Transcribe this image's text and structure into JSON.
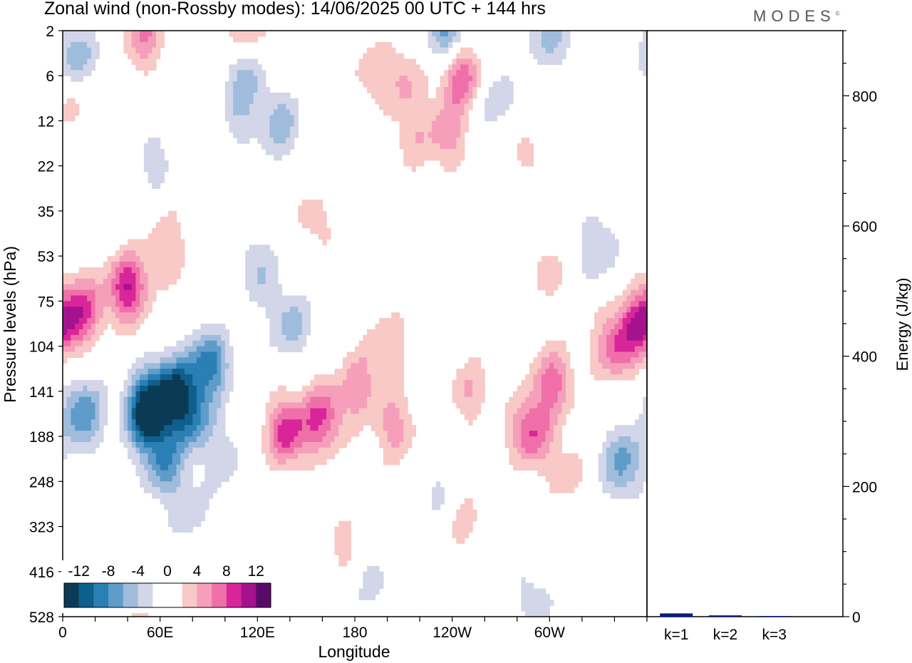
{
  "title": "Zonal wind (non-Rossby modes):  14/06/2025  00 UTC  + 144 hrs",
  "logo_text": "MODES",
  "logo_mark": "©",
  "chart_data": [
    {
      "type": "heatmap",
      "title": "Zonal wind (non-Rossby modes):  14/06/2025  00 UTC  + 144 hrs",
      "xlabel": "Longitude",
      "ylabel": "Pressure levels (hPa)",
      "x_ticks": [
        "0",
        "60E",
        "120E",
        "180",
        "120W",
        "60W"
      ],
      "x_tick_values": [
        0,
        60,
        120,
        180,
        240,
        300
      ],
      "xlim": [
        0,
        360
      ],
      "y_ticks": [
        "2",
        "6",
        "12",
        "22",
        "35",
        "53",
        "75",
        "104",
        "141",
        "188",
        "248",
        "323",
        "416",
        "528"
      ],
      "y_scale": "irregular (level index)",
      "colorbar": {
        "labels": [
          "-12",
          "-8",
          "-4",
          "0",
          "4",
          "8",
          "12"
        ],
        "levels": [
          -14,
          -12,
          -10,
          -8,
          -6,
          -4,
          -2,
          0,
          2,
          4,
          6,
          8,
          10,
          12,
          14
        ],
        "colors": [
          "#0a3a55",
          "#0f5f8c",
          "#2a7fb4",
          "#5f9cca",
          "#9fbcdc",
          "#d3d5e8",
          "#ffffff",
          "#ffffff",
          "#f8c9c6",
          "#f59fba",
          "#ef70a8",
          "#d8269a",
          "#a5128d",
          "#5a0b6a"
        ]
      },
      "blobs": [
        {
          "lon": 52,
          "lev": 8.45,
          "value": -15
        },
        {
          "lon": 68,
          "lev": 8.0,
          "value": -11
        },
        {
          "lon": 90,
          "lev": 7.4,
          "value": -9
        },
        {
          "lon": 80,
          "lev": 8.6,
          "value": -7
        },
        {
          "lon": 12,
          "lev": 8.5,
          "value": -8
        },
        {
          "lon": 62,
          "lev": 9.6,
          "value": -7
        },
        {
          "lon": 78,
          "lev": 10.7,
          "value": -3
        },
        {
          "lon": 100,
          "lev": 9.5,
          "value": -3
        },
        {
          "lon": 140,
          "lev": 6.5,
          "value": -5
        },
        {
          "lon": 120,
          "lev": 5.3,
          "value": -4
        },
        {
          "lon": 230,
          "lev": 10.3,
          "value": -3
        },
        {
          "lon": 345,
          "lev": 9.6,
          "value": -7
        },
        {
          "lon": 330,
          "lev": 4.8,
          "value": -4
        },
        {
          "lon": 135,
          "lev": 2.1,
          "value": -5
        },
        {
          "lon": 110,
          "lev": 1.9,
          "value": -3
        },
        {
          "lon": 268,
          "lev": 1.6,
          "value": -4
        },
        {
          "lon": 238,
          "lev": 0.1,
          "value": -8
        },
        {
          "lon": 300,
          "lev": 0.1,
          "value": -5
        },
        {
          "lon": 8,
          "lev": 0.6,
          "value": -6
        },
        {
          "lon": 112,
          "lev": 0.8,
          "value": -6
        },
        {
          "lon": 55,
          "lev": 2.9,
          "value": -3
        },
        {
          "lon": 290,
          "lev": 12.6,
          "value": -3
        },
        {
          "lon": 190,
          "lev": 12.1,
          "value": -3
        },
        {
          "lon": 160,
          "lev": 8.6,
          "value": 8
        },
        {
          "lon": 138,
          "lev": 8.9,
          "value": 9
        },
        {
          "lon": 182,
          "lev": 7.9,
          "value": 5
        },
        {
          "lon": 200,
          "lev": 7.0,
          "value": 4
        },
        {
          "lon": 205,
          "lev": 8.8,
          "value": 5
        },
        {
          "lon": 250,
          "lev": 8.0,
          "value": 4
        },
        {
          "lon": 288,
          "lev": 8.9,
          "value": 8
        },
        {
          "lon": 302,
          "lev": 7.8,
          "value": 7
        },
        {
          "lon": 340,
          "lev": 7.0,
          "value": 7
        },
        {
          "lon": 356,
          "lev": 6.5,
          "value": 9
        },
        {
          "lon": 175,
          "lev": 11.5,
          "value": 3
        },
        {
          "lon": 245,
          "lev": 10.8,
          "value": 3
        },
        {
          "lon": 310,
          "lev": 9.8,
          "value": 3
        },
        {
          "lon": 40,
          "lev": 5.7,
          "value": 10
        },
        {
          "lon": 12,
          "lev": 6.2,
          "value": 8
        },
        {
          "lon": 65,
          "lev": 4.8,
          "value": 4
        },
        {
          "lon": 50,
          "lev": 12.5,
          "value": 3
        },
        {
          "lon": 245,
          "lev": 0.9,
          "value": 9
        },
        {
          "lon": 210,
          "lev": 1.1,
          "value": 4
        },
        {
          "lon": 237,
          "lev": 2.3,
          "value": 5
        },
        {
          "lon": 215,
          "lev": 2.4,
          "value": 3
        },
        {
          "lon": 280,
          "lev": 2.5,
          "value": 3
        },
        {
          "lon": 50,
          "lev": 0.1,
          "value": 6
        },
        {
          "lon": 112,
          "lev": 0.1,
          "value": 6
        },
        {
          "lon": 190,
          "lev": 0.9,
          "value": 3
        },
        {
          "lon": 8,
          "lev": 1.5,
          "value": 3
        },
        {
          "lon": 155,
          "lev": 4.2,
          "value": 3
        },
        {
          "lon": 297,
          "lev": 5.3,
          "value": 3
        }
      ]
    },
    {
      "type": "bar",
      "ylabel": "Energy (J/kg)",
      "categories": [
        "k=1",
        "k=2",
        "k=3"
      ],
      "values": [
        5,
        2,
        1
      ],
      "ylim": [
        0,
        900
      ],
      "y_ticks": [
        0,
        200,
        400,
        600,
        800
      ],
      "bar_color": "#0a1a8a"
    }
  ]
}
